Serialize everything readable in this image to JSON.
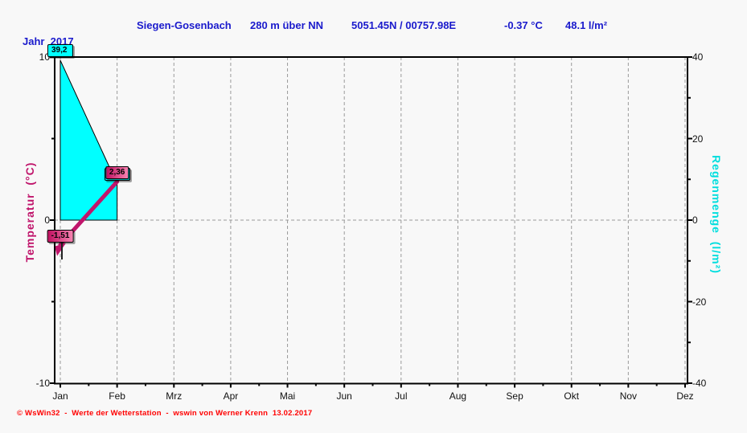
{
  "header": {
    "station": "Siegen-Gosenbach",
    "altitude": "280 m über NN",
    "coordinates": "5051.45N / 00757.98E",
    "mean_temperature": "-0.37 °C",
    "total_rain": "48.1 l/m²"
  },
  "year_label": "Jahr  2017",
  "footer": "© WsWin32  -  Werte der Wetterstation  -  wswin von Werner Krenn  13.02.2017",
  "chart_data": {
    "type": "mixed",
    "title": "Jahr 2017",
    "categories": [
      "Jan",
      "Feb",
      "Mrz",
      "Apr",
      "Mai",
      "Jun",
      "Jul",
      "Aug",
      "Sep",
      "Okt",
      "Nov",
      "Dez"
    ],
    "series": [
      {
        "name": "Regenmenge",
        "type": "area",
        "axis": "right",
        "color": "#00ffff",
        "values": [
          39.2,
          8.9,
          null,
          null,
          null,
          null,
          null,
          null,
          null,
          null,
          null,
          null
        ]
      },
      {
        "name": "Temperatur",
        "type": "line",
        "axis": "left",
        "color": "#c0156b",
        "values": [
          -1.51,
          2.36,
          null,
          null,
          null,
          null,
          null,
          null,
          null,
          null,
          null,
          null
        ]
      }
    ],
    "y_left": {
      "label": "Temperatur  (°C)",
      "range": [
        -10,
        10
      ],
      "ticks": [
        10,
        0,
        -10
      ],
      "minor_ticks": [
        5,
        -5
      ]
    },
    "y_right": {
      "label": "Regenmenge  (l/m²)",
      "range": [
        -40,
        40
      ],
      "ticks": [
        40,
        20,
        0,
        -20,
        -40
      ],
      "minor_ticks": [
        30,
        10,
        -10,
        -30
      ]
    },
    "grid": {
      "vertical": "dashed line at every month",
      "horizontal": "dashed line at 0"
    }
  },
  "value_labels": [
    {
      "text": "39,2",
      "series": "rain",
      "month_index": 0,
      "value": 39.2
    },
    {
      "text": "",
      "series": "rain",
      "month_index": 1,
      "value": 8.9
    },
    {
      "text": "-1,51",
      "series": "temp",
      "month_index": 0,
      "value": -1.51
    },
    {
      "text": "2,36",
      "series": "temp",
      "month_index": 1,
      "value": 2.36
    }
  ],
  "colors": {
    "header_text": "#1a1acc",
    "temperature": "#c0156b",
    "rain_fill": "#00ffff",
    "rain_axis_text": "#00dede",
    "grid": "#9a9a9a",
    "footer_text": "#ff0000",
    "background": "#f8f8f8"
  }
}
